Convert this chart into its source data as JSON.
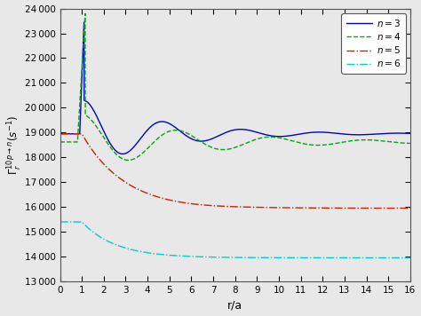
{
  "title": "",
  "xlabel": "r/a",
  "ylabel": "$\\Gamma_r^{10p\\rightarrow n}(s^{-1})$",
  "xlim": [
    0,
    16
  ],
  "ylim": [
    13000,
    24000
  ],
  "yticks": [
    13000,
    14000,
    15000,
    16000,
    17000,
    18000,
    19000,
    20000,
    21000,
    22000,
    23000,
    24000
  ],
  "xticks": [
    0,
    1,
    2,
    3,
    4,
    5,
    6,
    7,
    8,
    9,
    10,
    11,
    12,
    13,
    14,
    15,
    16
  ],
  "legend_labels": [
    "$n = 3$",
    "$n = 4$",
    "$n = 5$",
    "$n = 6$"
  ],
  "line_colors": [
    "#0000cc",
    "#00aa00",
    "#cc2200",
    "#00cccc"
  ],
  "background_color": "#e8e8e8",
  "n3_asymptote": 18950,
  "n4_asymptote": 18620,
  "n5_asymptote": 15950,
  "n6_asymptote": 13950,
  "n3_peak": 23500,
  "n4_peak": 23800,
  "n3_peak_x": 1.1,
  "n4_peak_x": 1.15
}
